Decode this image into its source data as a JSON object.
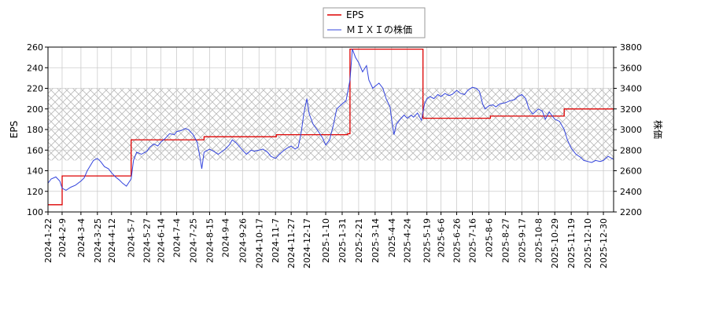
{
  "chart_data": {
    "type": "line",
    "legend": {
      "placement": "top-center",
      "entries": [
        {
          "label": "EPS",
          "color": "#dd0000"
        },
        {
          "label": "ＭＩＸＩの株価",
          "color": "#3344dd"
        }
      ]
    },
    "ylabel_left": "EPS",
    "ylabel_right": "株価",
    "ylim_left": [
      100,
      260
    ],
    "ylim_right": [
      2200,
      3800
    ],
    "yticks_left": [
      100,
      120,
      140,
      160,
      180,
      200,
      220,
      240,
      260
    ],
    "yticks_right": [
      2200,
      2400,
      2600,
      2800,
      3000,
      3200,
      3400,
      3600,
      3800
    ],
    "xlim": [
      "2024-01-22",
      "2026-01-12"
    ],
    "xticks": [
      "2024-1-22",
      "2024-2-9",
      "2024-3-4",
      "2024-3-25",
      "2024-4-12",
      "2024-5-7",
      "2024-5-27",
      "2024-6-14",
      "2024-7-4",
      "2024-7-25",
      "2024-8-15",
      "2024-9-4",
      "2024-9-26",
      "2024-10-17",
      "2024-11-7",
      "2024-11-27",
      "2024-12-17",
      "2025-1-10",
      "2025-1-31",
      "2025-2-21",
      "2025-3-14",
      "2025-4-4",
      "2025-4-24",
      "2025-5-19",
      "2025-6-6",
      "2025-6-26",
      "2025-7-16",
      "2025-8-6",
      "2025-8-27",
      "2025-9-17",
      "2025-10-8",
      "2025-10-29",
      "2025-11-19",
      "2025-12-10",
      "2025-12-30"
    ],
    "grid": true,
    "shaded_band_left": [
      150,
      220
    ],
    "series": [
      {
        "name": "EPS",
        "axis": "left",
        "color": "#dd0000",
        "step": true,
        "points": [
          [
            "2024-01-22",
            107
          ],
          [
            "2024-02-09",
            135
          ],
          [
            "2024-05-03",
            135
          ],
          [
            "2024-05-07",
            170
          ],
          [
            "2024-08-08",
            173
          ],
          [
            "2024-11-08",
            175
          ],
          [
            "2025-02-07",
            176
          ],
          [
            "2025-02-10",
            258
          ],
          [
            "2025-05-12",
            258
          ],
          [
            "2025-05-14",
            191
          ],
          [
            "2025-08-08",
            193
          ],
          [
            "2025-11-10",
            200
          ],
          [
            "2026-01-12",
            199
          ]
        ]
      },
      {
        "name": "ＭＩＸＩの株価",
        "axis": "right",
        "color": "#3344dd",
        "points": [
          [
            "2024-01-22",
            2480
          ],
          [
            "2024-01-26",
            2520
          ],
          [
            "2024-02-01",
            2540
          ],
          [
            "2024-02-06",
            2500
          ],
          [
            "2024-02-09",
            2430
          ],
          [
            "2024-02-14",
            2410
          ],
          [
            "2024-02-20",
            2440
          ],
          [
            "2024-02-26",
            2460
          ],
          [
            "2024-03-04",
            2500
          ],
          [
            "2024-03-08",
            2530
          ],
          [
            "2024-03-12",
            2600
          ],
          [
            "2024-03-16",
            2650
          ],
          [
            "2024-03-20",
            2700
          ],
          [
            "2024-03-25",
            2720
          ],
          [
            "2024-03-29",
            2690
          ],
          [
            "2024-04-03",
            2640
          ],
          [
            "2024-04-08",
            2620
          ],
          [
            "2024-04-12",
            2580
          ],
          [
            "2024-04-17",
            2540
          ],
          [
            "2024-04-22",
            2510
          ],
          [
            "2024-04-26",
            2480
          ],
          [
            "2024-05-01",
            2450
          ],
          [
            "2024-05-07",
            2520
          ],
          [
            "2024-05-10",
            2700
          ],
          [
            "2024-05-14",
            2780
          ],
          [
            "2024-05-20",
            2760
          ],
          [
            "2024-05-27",
            2790
          ],
          [
            "2024-05-31",
            2830
          ],
          [
            "2024-06-05",
            2860
          ],
          [
            "2024-06-10",
            2840
          ],
          [
            "2024-06-14",
            2880
          ],
          [
            "2024-06-19",
            2910
          ],
          [
            "2024-06-25",
            2960
          ],
          [
            "2024-07-01",
            2950
          ],
          [
            "2024-07-04",
            2980
          ],
          [
            "2024-07-10",
            2990
          ],
          [
            "2024-07-15",
            3010
          ],
          [
            "2024-07-19",
            3000
          ],
          [
            "2024-07-25",
            2950
          ],
          [
            "2024-07-30",
            2880
          ],
          [
            "2024-08-02",
            2760
          ],
          [
            "2024-08-05",
            2620
          ],
          [
            "2024-08-08",
            2780
          ],
          [
            "2024-08-15",
            2810
          ],
          [
            "2024-08-20",
            2790
          ],
          [
            "2024-08-26",
            2760
          ],
          [
            "2024-09-04",
            2810
          ],
          [
            "2024-09-09",
            2850
          ],
          [
            "2024-09-13",
            2900
          ],
          [
            "2024-09-18",
            2870
          ],
          [
            "2024-09-26",
            2800
          ],
          [
            "2024-10-01",
            2760
          ],
          [
            "2024-10-07",
            2800
          ],
          [
            "2024-10-11",
            2790
          ],
          [
            "2024-10-17",
            2800
          ],
          [
            "2024-10-22",
            2810
          ],
          [
            "2024-10-28",
            2780
          ],
          [
            "2024-11-01",
            2740
          ],
          [
            "2024-11-07",
            2720
          ],
          [
            "2024-11-12",
            2760
          ],
          [
            "2024-11-18",
            2800
          ],
          [
            "2024-11-22",
            2820
          ],
          [
            "2024-11-27",
            2840
          ],
          [
            "2024-12-02",
            2810
          ],
          [
            "2024-12-06",
            2830
          ],
          [
            "2024-12-10",
            2980
          ],
          [
            "2024-12-13",
            3150
          ],
          [
            "2024-12-17",
            3300
          ],
          [
            "2024-12-20",
            3150
          ],
          [
            "2024-12-25",
            3050
          ],
          [
            "2024-12-30",
            3000
          ],
          [
            "2025-01-06",
            2920
          ],
          [
            "2025-01-10",
            2850
          ],
          [
            "2025-01-15",
            2900
          ],
          [
            "2025-01-20",
            3050
          ],
          [
            "2025-01-24",
            3200
          ],
          [
            "2025-01-31",
            3250
          ],
          [
            "2025-02-05",
            3280
          ],
          [
            "2025-02-10",
            3480
          ],
          [
            "2025-02-13",
            3780
          ],
          [
            "2025-02-17",
            3700
          ],
          [
            "2025-02-21",
            3650
          ],
          [
            "2025-02-26",
            3560
          ],
          [
            "2025-03-03",
            3620
          ],
          [
            "2025-03-06",
            3480
          ],
          [
            "2025-03-11",
            3400
          ],
          [
            "2025-03-14",
            3420
          ],
          [
            "2025-03-19",
            3450
          ],
          [
            "2025-03-24",
            3400
          ],
          [
            "2025-03-28",
            3300
          ],
          [
            "2025-04-02",
            3220
          ],
          [
            "2025-04-04",
            3100
          ],
          [
            "2025-04-07",
            2950
          ],
          [
            "2025-04-10",
            3050
          ],
          [
            "2025-04-15",
            3100
          ],
          [
            "2025-04-20",
            3140
          ],
          [
            "2025-04-24",
            3110
          ],
          [
            "2025-04-29",
            3140
          ],
          [
            "2025-05-02",
            3120
          ],
          [
            "2025-05-07",
            3160
          ],
          [
            "2025-05-12",
            3090
          ],
          [
            "2025-05-16",
            3250
          ],
          [
            "2025-05-19",
            3300
          ],
          [
            "2025-05-23",
            3320
          ],
          [
            "2025-05-28",
            3300
          ],
          [
            "2025-06-02",
            3340
          ],
          [
            "2025-06-06",
            3320
          ],
          [
            "2025-06-11",
            3350
          ],
          [
            "2025-06-16",
            3330
          ],
          [
            "2025-06-20",
            3340
          ],
          [
            "2025-06-26",
            3380
          ],
          [
            "2025-07-01",
            3350
          ],
          [
            "2025-07-06",
            3340
          ],
          [
            "2025-07-10",
            3380
          ],
          [
            "2025-07-16",
            3410
          ],
          [
            "2025-07-21",
            3400
          ],
          [
            "2025-07-25",
            3370
          ],
          [
            "2025-07-29",
            3250
          ],
          [
            "2025-08-01",
            3200
          ],
          [
            "2025-08-06",
            3230
          ],
          [
            "2025-08-11",
            3240
          ],
          [
            "2025-08-15",
            3220
          ],
          [
            "2025-08-20",
            3250
          ],
          [
            "2025-08-27",
            3260
          ],
          [
            "2025-09-02",
            3280
          ],
          [
            "2025-09-08",
            3290
          ],
          [
            "2025-09-12",
            3320
          ],
          [
            "2025-09-17",
            3340
          ],
          [
            "2025-09-22",
            3300
          ],
          [
            "2025-09-26",
            3200
          ],
          [
            "2025-10-01",
            3150
          ],
          [
            "2025-10-08",
            3200
          ],
          [
            "2025-10-13",
            3180
          ],
          [
            "2025-10-17",
            3100
          ],
          [
            "2025-10-22",
            3170
          ],
          [
            "2025-10-29",
            3100
          ],
          [
            "2025-11-04",
            3080
          ],
          [
            "2025-11-10",
            3000
          ],
          [
            "2025-11-14",
            2900
          ],
          [
            "2025-11-19",
            2820
          ],
          [
            "2025-11-25",
            2760
          ],
          [
            "2025-12-01",
            2730
          ],
          [
            "2025-12-05",
            2700
          ],
          [
            "2025-12-10",
            2690
          ],
          [
            "2025-12-15",
            2680
          ],
          [
            "2025-12-20",
            2700
          ],
          [
            "2025-12-26",
            2690
          ],
          [
            "2025-12-30",
            2700
          ],
          [
            "2026-01-05",
            2740
          ],
          [
            "2026-01-12",
            2710
          ]
        ]
      }
    ]
  }
}
